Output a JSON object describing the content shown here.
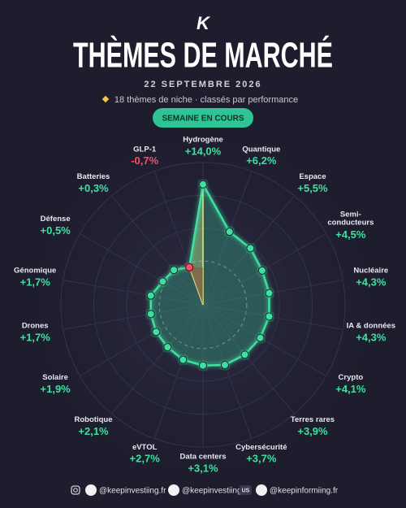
{
  "logo": "K",
  "chart_data": {
    "type": "radar",
    "title": "THÈMES DE MARCHÉ",
    "date": "22 SEPTEMBRE 2026",
    "subtitle": "18 thèmes de niche · classés par performance",
    "badge": "SEMAINE EN COURS",
    "categories": [
      "Hydrogène",
      "Quantique",
      "Espace",
      "Semi-conducteurs",
      "Nucléaire",
      "IA & données",
      "Crypto",
      "Terres rares",
      "Cybersécurité",
      "Data centers",
      "eVTOL",
      "Robotique",
      "Solaire",
      "Drones",
      "Génomique",
      "Défense",
      "Batteries",
      "GLP-1"
    ],
    "values": [
      14.0,
      6.2,
      5.5,
      4.5,
      4.3,
      4.3,
      4.1,
      3.9,
      3.7,
      3.1,
      2.7,
      2.1,
      1.9,
      1.7,
      1.7,
      0.5,
      0.3,
      -0.7
    ],
    "value_labels": [
      "+14,0%",
      "+6,2%",
      "+5,5%",
      "+4,5%",
      "+4,3%",
      "+4,3%",
      "+4,1%",
      "+3,9%",
      "+3,7%",
      "+3,1%",
      "+2,7%",
      "+2,1%",
      "+1,9%",
      "+1,7%",
      "+1,7%",
      "+0,5%",
      "+0,3%",
      "-0,7%"
    ],
    "positive_color": "#3ee0a0",
    "negative_color": "#ff4d5f",
    "rlim": [
      -8,
      18
    ],
    "rticks": [
      0,
      6,
      12,
      18
    ],
    "grid": true
  },
  "footer": {
    "handles": [
      "@keepinvestiing.fr",
      "@keepinvestiing",
      "@keepinformiing.fr"
    ],
    "region": "US"
  }
}
